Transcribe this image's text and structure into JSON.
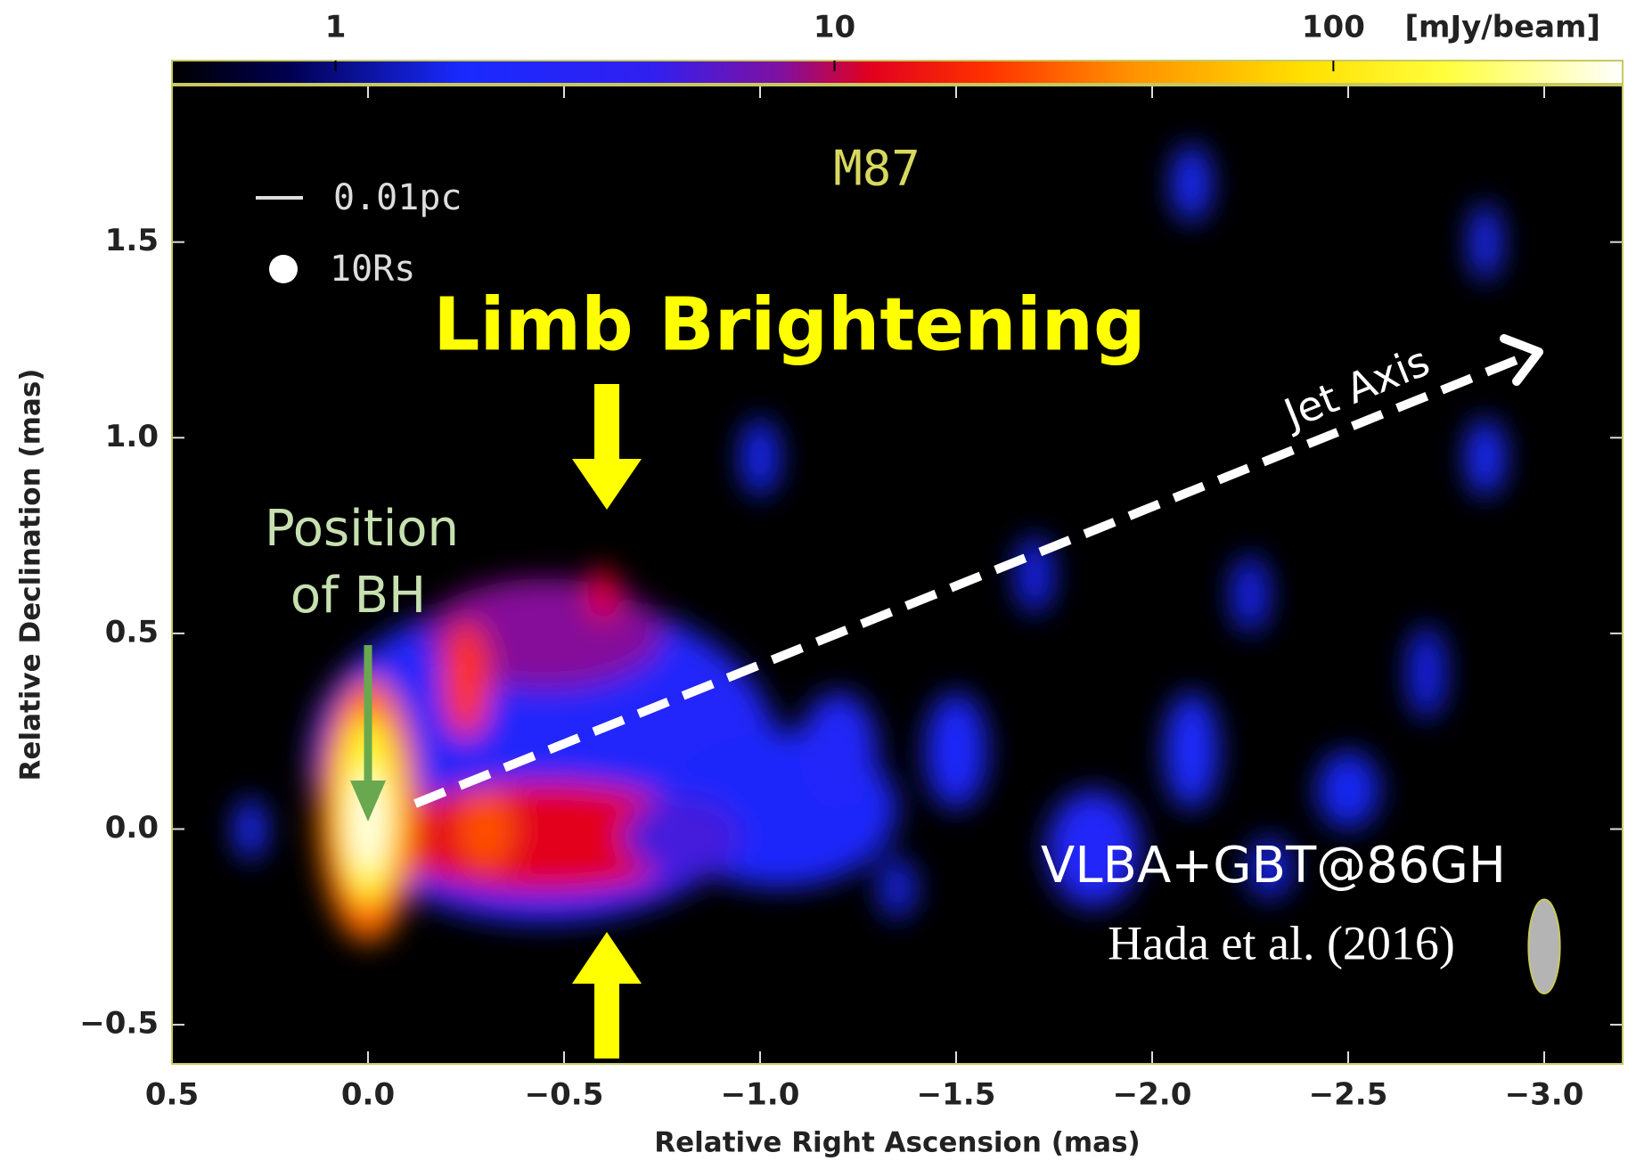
{
  "chart_data": {
    "type": "image",
    "title": "M87",
    "xlabel": "Relative Right Ascension (mas)",
    "ylabel": "Relative Declination (mas)",
    "xlim": [
      0.5,
      -3.2
    ],
    "ylim": [
      -0.6,
      1.9
    ],
    "xticks": [
      0.5,
      {
        "value": 0,
        "label": "0.0"
      },
      {
        "value": -0.5,
        "label": "−0.5"
      },
      {
        "value": -1.0,
        "label": "−1.0"
      },
      {
        "value": -1.5,
        "label": "−1.5"
      },
      {
        "value": -2.0,
        "label": "−2.0"
      },
      {
        "value": -2.5,
        "label": "−2.5"
      },
      {
        "value": -3.0,
        "label": "−3.0"
      }
    ],
    "yticks": [
      {
        "value": -0.5,
        "label": "−0.5"
      },
      {
        "value": 0,
        "label": "0.0"
      },
      0.5,
      {
        "value": 1.0,
        "label": "1.0"
      },
      1.5
    ],
    "colorbar": {
      "label": "[mJy/beam]",
      "log": true,
      "lim": [
        0.47,
        380
      ],
      "ticks": [
        1,
        10,
        100
      ]
    },
    "components": [
      {
        "ra": -0.45,
        "dec": 0.18,
        "sx": 0.6,
        "sy": 0.42,
        "flux": 2.4
      },
      {
        "ra": -1.05,
        "dec": 0.05,
        "sx": 0.3,
        "sy": 0.2,
        "flux": 2.2
      },
      {
        "ra": 0.3,
        "dec": 0.0,
        "sx": 0.04,
        "sy": 0.08,
        "flux": 1.9
      },
      {
        "ra": -1.2,
        "dec": 0.2,
        "sx": 0.1,
        "sy": 0.15,
        "flux": 2.5
      },
      {
        "ra": -1.5,
        "dec": 0.2,
        "sx": 0.08,
        "sy": 0.15,
        "flux": 2.2
      },
      {
        "ra": -1.85,
        "dec": -0.05,
        "sx": 0.12,
        "sy": 0.15,
        "flux": 2.5
      },
      {
        "ra": -2.1,
        "dec": 0.2,
        "sx": 0.07,
        "sy": 0.15,
        "flux": 2.0
      },
      {
        "ra": -2.5,
        "dec": 0.1,
        "sx": 0.08,
        "sy": 0.1,
        "flux": 1.7
      },
      {
        "ra": -2.1,
        "dec": 1.65,
        "sx": 0.05,
        "sy": 0.1,
        "flux": 2.0
      },
      {
        "ra": -2.85,
        "dec": 1.5,
        "sx": 0.04,
        "sy": 0.1,
        "flux": 2.0
      },
      {
        "ra": -2.85,
        "dec": 0.95,
        "sx": 0.05,
        "sy": 0.1,
        "flux": 1.8
      },
      {
        "ra": -1.7,
        "dec": 0.65,
        "sx": 0.05,
        "sy": 0.1,
        "flux": 1.6
      },
      {
        "ra": -2.25,
        "dec": 0.6,
        "sx": 0.05,
        "sy": 0.1,
        "flux": 1.6
      },
      {
        "ra": -2.7,
        "dec": 0.4,
        "sx": 0.05,
        "sy": 0.12,
        "flux": 1.6
      },
      {
        "ra": -1.0,
        "dec": 0.95,
        "sx": 0.05,
        "sy": 0.1,
        "flux": 1.7
      },
      {
        "ra": -1.35,
        "dec": -0.15,
        "sx": 0.05,
        "sy": 0.08,
        "flux": 1.5
      },
      {
        "ra": -2.3,
        "dec": -0.1,
        "sx": 0.06,
        "sy": 0.08,
        "flux": 1.5
      },
      {
        "ra": -0.45,
        "dec": 0.5,
        "sx": 0.3,
        "sy": 0.14,
        "flux": 8
      },
      {
        "ra": -0.45,
        "dec": -0.02,
        "sx": 0.42,
        "sy": 0.14,
        "flux": 12
      },
      {
        "ra": -0.8,
        "dec": -0.02,
        "sx": 0.15,
        "sy": 0.1,
        "flux": 5
      },
      {
        "ra": -0.25,
        "dec": 0.38,
        "sx": 0.06,
        "sy": 0.15,
        "flux": 20
      },
      {
        "ra": -0.3,
        "dec": 0.0,
        "sx": 0.07,
        "sy": 0.1,
        "flux": 25
      },
      {
        "ra": -0.6,
        "dec": 0.6,
        "sx": 0.04,
        "sy": 0.07,
        "flux": 12
      },
      {
        "ra": 0.0,
        "dec": 0.05,
        "sx": 0.13,
        "sy": 0.34,
        "flux": 30
      },
      {
        "ra": 0.0,
        "dec": 0.05,
        "sx": 0.08,
        "sy": 0.24,
        "flux": 150
      },
      {
        "ra": 0.0,
        "dec": 0.02,
        "sx": 0.04,
        "sy": 0.13,
        "flux": 360
      }
    ],
    "beam": {
      "ra": -3.0,
      "dec": -0.3,
      "major": 0.24,
      "minor": 0.08
    },
    "annotations": {
      "scale_bar": "0.01pc",
      "circle": "10Rs",
      "limb": "Limb Brightening",
      "bh": [
        "Position",
        "of BH"
      ],
      "jet_axis": "Jet Axis",
      "instrument": "VLBA+GBT@86GH",
      "reference": "Hada et al. (2016)"
    }
  }
}
